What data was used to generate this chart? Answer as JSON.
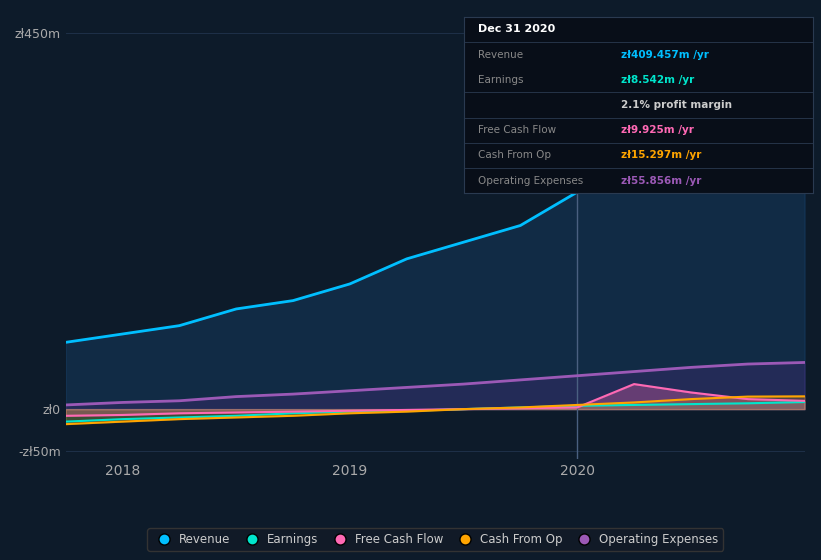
{
  "background_color": "#0d1b2a",
  "plot_bg_color": "#0d1b2a",
  "grid_color": "#1e3048",
  "ylabel_top": "zł450m",
  "ylabel_zero": "zł0",
  "ylabel_bottom": "-zł50m",
  "x_ticks": [
    2018,
    2019,
    2020
  ],
  "ylim": [
    -60,
    470
  ],
  "legend": [
    {
      "label": "Revenue",
      "color": "#00bfff"
    },
    {
      "label": "Earnings",
      "color": "#00e5cc"
    },
    {
      "label": "Free Cash Flow",
      "color": "#ff69b4"
    },
    {
      "label": "Cash From Op",
      "color": "#ffa500"
    },
    {
      "label": "Operating Expenses",
      "color": "#9b59b6"
    }
  ],
  "vertical_line_x": 2020.0,
  "revenue": {
    "x": [
      2017.75,
      2018.0,
      2018.25,
      2018.5,
      2018.75,
      2019.0,
      2019.25,
      2019.5,
      2019.75,
      2020.0,
      2020.25,
      2020.5,
      2020.75,
      2021.0
    ],
    "y": [
      80,
      90,
      100,
      120,
      130,
      150,
      180,
      200,
      220,
      260,
      300,
      350,
      400,
      410
    ]
  },
  "earnings": {
    "x": [
      2017.75,
      2018.0,
      2018.25,
      2018.5,
      2018.75,
      2019.0,
      2019.25,
      2019.5,
      2019.75,
      2020.0,
      2020.25,
      2020.5,
      2020.75,
      2021.0
    ],
    "y": [
      -15,
      -12,
      -10,
      -8,
      -5,
      -3,
      -2,
      0,
      2,
      4,
      5,
      6,
      7,
      8.5
    ]
  },
  "free_cash_flow": {
    "x": [
      2017.75,
      2018.0,
      2018.25,
      2018.5,
      2018.75,
      2019.0,
      2019.25,
      2019.5,
      2019.75,
      2020.0,
      2020.25,
      2020.5,
      2020.75,
      2021.0
    ],
    "y": [
      -8,
      -7,
      -5,
      -4,
      -3,
      -2,
      -1,
      0,
      1,
      2,
      30,
      20,
      12,
      9.9
    ]
  },
  "cash_from_op": {
    "x": [
      2017.75,
      2018.0,
      2018.25,
      2018.5,
      2018.75,
      2019.0,
      2019.25,
      2019.5,
      2019.75,
      2020.0,
      2020.25,
      2020.5,
      2020.75,
      2021.0
    ],
    "y": [
      -18,
      -15,
      -12,
      -10,
      -8,
      -5,
      -3,
      0,
      2,
      5,
      8,
      12,
      15,
      15.3
    ]
  },
  "operating_expenses": {
    "x": [
      2017.75,
      2018.0,
      2018.25,
      2018.5,
      2018.75,
      2019.0,
      2019.25,
      2019.5,
      2019.75,
      2020.0,
      2020.25,
      2020.5,
      2020.75,
      2021.0
    ],
    "y": [
      5,
      8,
      10,
      15,
      18,
      22,
      26,
      30,
      35,
      40,
      45,
      50,
      54,
      55.9
    ]
  },
  "tooltip_rows": [
    {
      "left": "Dec 31 2020",
      "right": null,
      "color": null,
      "is_header": true
    },
    {
      "left": "Revenue",
      "right": "zł409.457m /yr",
      "color": "#00bfff",
      "is_header": false
    },
    {
      "left": "Earnings",
      "right": "zł8.542m /yr",
      "color": "#00e5cc",
      "is_header": false
    },
    {
      "left": "",
      "right": "2.1% profit margin",
      "color": "#ffffff",
      "is_header": false
    },
    {
      "left": "Free Cash Flow",
      "right": "zł9.925m /yr",
      "color": "#ff69b4",
      "is_header": false
    },
    {
      "left": "Cash From Op",
      "right": "zł15.297m /yr",
      "color": "#ffa500",
      "is_header": false
    },
    {
      "left": "Operating Expenses",
      "right": "zł55.856m /yr",
      "color": "#9b59b6",
      "is_header": false
    }
  ],
  "tooltip_sep_after": [
    0,
    2,
    3,
    4,
    5
  ]
}
